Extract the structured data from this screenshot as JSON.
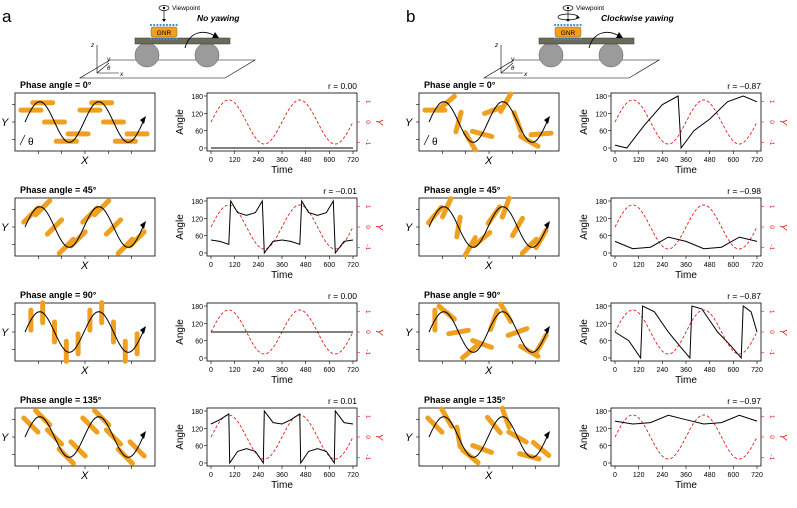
{
  "figure": {
    "panels": [
      {
        "letter": "a",
        "schematic": {
          "viewpoint": "Viewpoint",
          "gnr": "GNR",
          "mode": "No yawing",
          "axis_labels": [
            "z",
            "y",
            "θ",
            "x"
          ]
        },
        "rows": [
          {
            "phase": "Phase angle = 0°",
            "r": "r = 0.00",
            "rod_angles": [
              0,
              0,
              0,
              0,
              0,
              0,
              0,
              0,
              0,
              0
            ]
          },
          {
            "phase": "Phase angle = 45°",
            "r": "r = –0.01",
            "rod_angles": [
              45,
              45,
              45,
              45,
              45,
              45,
              45,
              45,
              45,
              45
            ]
          },
          {
            "phase": "Phase angle = 90°",
            "r": "r = 0.00",
            "rod_angles": [
              90,
              90,
              90,
              90,
              90,
              90,
              90,
              90,
              90,
              90
            ]
          },
          {
            "phase": "Phase angle = 135°",
            "r": "r = 0.01",
            "rod_angles": [
              135,
              135,
              135,
              135,
              135,
              135,
              135,
              135,
              135,
              135
            ]
          }
        ]
      },
      {
        "letter": "b",
        "schematic": {
          "viewpoint": "Viewpoint",
          "gnr": "GNR",
          "mode": "Clockwise yawing",
          "axis_labels": [
            "z",
            "y",
            "θ",
            "x"
          ]
        },
        "rows": [
          {
            "phase": "Phase angle = 0°",
            "r": "r = –0.87",
            "rod_angles": [
              0,
              40,
              75,
              120,
              165,
              20,
              60,
              110,
              150,
              5
            ]
          },
          {
            "phase": "Phase angle = 45°",
            "r": "r = –0.98",
            "rod_angles": [
              50,
              65,
              80,
              60,
              40,
              55,
              70,
              60,
              45,
              60
            ]
          },
          {
            "phase": "Phase angle = 90°",
            "r": "r = –0.87",
            "rod_angles": [
              90,
              140,
              10,
              40,
              160,
              70,
              120,
              20,
              150,
              60
            ]
          },
          {
            "phase": "Phase angle = 135°",
            "r": "r = –0.97",
            "rod_angles": [
              135,
              120,
              100,
              140,
              160,
              130,
              110,
              150,
              165,
              140
            ]
          }
        ]
      }
    ]
  },
  "axes": {
    "traj_x_label": "X",
    "traj_y_label": "Y",
    "theta_label": "θ",
    "angle_label": "Angle",
    "time_label": "Time",
    "right_label": "Y",
    "angle_ticks": [
      "0",
      "60",
      "120",
      "180"
    ],
    "time_ticks": [
      "0",
      "120",
      "240",
      "360",
      "480",
      "600",
      "720"
    ],
    "y_ticks": [
      "1",
      "0",
      "-1"
    ]
  },
  "chart_data": [
    {
      "type": "line",
      "panel": "a",
      "phase_angle": 0,
      "r": 0.0,
      "x_range": [
        0,
        720
      ],
      "y_range": [
        0,
        180
      ],
      "series": [
        {
          "style": "solid",
          "points": [
            [
              0,
              0
            ],
            [
              720,
              0
            ]
          ]
        },
        {
          "style": "dashed",
          "color": "#e0201b",
          "axis": "right",
          "function": "sin(2*pi*t/360)",
          "range": [
            -1,
            1
          ]
        }
      ]
    },
    {
      "type": "line",
      "panel": "a",
      "phase_angle": 45,
      "r": -0.01,
      "x_range": [
        0,
        720
      ],
      "y_range": [
        0,
        180
      ],
      "series": [
        {
          "style": "solid",
          "points": [
            [
              0,
              45
            ],
            [
              45,
              40
            ],
            [
              90,
              30
            ],
            [
              100,
              180
            ],
            [
              135,
              140
            ],
            [
              180,
              130
            ],
            [
              225,
              140
            ],
            [
              260,
              180
            ],
            [
              270,
              0
            ],
            [
              315,
              40
            ],
            [
              360,
              45
            ],
            [
              405,
              40
            ],
            [
              450,
              30
            ],
            [
              460,
              180
            ],
            [
              495,
              140
            ],
            [
              540,
              130
            ],
            [
              585,
              140
            ],
            [
              620,
              180
            ],
            [
              630,
              0
            ],
            [
              675,
              40
            ],
            [
              720,
              45
            ]
          ]
        },
        {
          "style": "dashed",
          "color": "#e0201b",
          "axis": "right",
          "range": [
            -1,
            1
          ]
        }
      ]
    },
    {
      "type": "line",
      "panel": "a",
      "phase_angle": 90,
      "r": 0.0,
      "x_range": [
        0,
        720
      ],
      "y_range": [
        0,
        180
      ],
      "series": [
        {
          "style": "solid",
          "points": [
            [
              0,
              90
            ],
            [
              720,
              90
            ]
          ]
        },
        {
          "style": "dashed",
          "color": "#e0201b",
          "axis": "right",
          "range": [
            -1,
            1
          ]
        }
      ]
    },
    {
      "type": "line",
      "panel": "a",
      "phase_angle": 135,
      "r": 0.01,
      "x_range": [
        0,
        720
      ],
      "y_range": [
        0,
        180
      ],
      "series": [
        {
          "style": "solid",
          "points": [
            [
              0,
              135
            ],
            [
              45,
              150
            ],
            [
              90,
              170
            ],
            [
              95,
              0
            ],
            [
              135,
              40
            ],
            [
              180,
              50
            ],
            [
              225,
              40
            ],
            [
              265,
              0
            ],
            [
              270,
              180
            ],
            [
              315,
              140
            ],
            [
              360,
              135
            ],
            [
              405,
              150
            ],
            [
              450,
              170
            ],
            [
              455,
              0
            ],
            [
              495,
              40
            ],
            [
              540,
              50
            ],
            [
              585,
              40
            ],
            [
              625,
              0
            ],
            [
              630,
              180
            ],
            [
              675,
              140
            ],
            [
              720,
              135
            ]
          ]
        },
        {
          "style": "dashed",
          "color": "#e0201b",
          "axis": "right",
          "range": [
            -1,
            1
          ]
        }
      ]
    },
    {
      "type": "line",
      "panel": "b",
      "phase_angle": 0,
      "r": -0.87,
      "x_range": [
        0,
        720
      ],
      "y_range": [
        0,
        180
      ],
      "series": [
        {
          "style": "solid",
          "points": [
            [
              0,
              10
            ],
            [
              60,
              0
            ],
            [
              150,
              80
            ],
            [
              240,
              150
            ],
            [
              320,
              180
            ],
            [
              335,
              0
            ],
            [
              400,
              60
            ],
            [
              480,
              100
            ],
            [
              570,
              160
            ],
            [
              650,
              180
            ],
            [
              720,
              160
            ]
          ]
        },
        {
          "style": "dashed",
          "color": "#e0201b",
          "axis": "right",
          "range": [
            -1,
            1
          ]
        }
      ]
    },
    {
      "type": "line",
      "panel": "b",
      "phase_angle": 45,
      "r": -0.98,
      "x_range": [
        0,
        720
      ],
      "y_range": [
        0,
        180
      ],
      "series": [
        {
          "style": "solid",
          "points": [
            [
              0,
              40
            ],
            [
              90,
              15
            ],
            [
              180,
              20
            ],
            [
              270,
              55
            ],
            [
              360,
              40
            ],
            [
              450,
              15
            ],
            [
              540,
              20
            ],
            [
              630,
              55
            ],
            [
              720,
              40
            ]
          ]
        },
        {
          "style": "dashed",
          "color": "#e0201b",
          "axis": "right",
          "range": [
            -1,
            1
          ]
        }
      ]
    },
    {
      "type": "line",
      "panel": "b",
      "phase_angle": 90,
      "r": -0.87,
      "x_range": [
        0,
        720
      ],
      "y_range": [
        0,
        180
      ],
      "series": [
        {
          "style": "solid",
          "points": [
            [
              0,
              90
            ],
            [
              70,
              60
            ],
            [
              130,
              0
            ],
            [
              140,
              180
            ],
            [
              200,
              160
            ],
            [
              270,
              90
            ],
            [
              330,
              40
            ],
            [
              380,
              0
            ],
            [
              390,
              180
            ],
            [
              440,
              170
            ],
            [
              520,
              90
            ],
            [
              590,
              40
            ],
            [
              640,
              0
            ],
            [
              650,
              180
            ],
            [
              690,
              160
            ],
            [
              720,
              90
            ]
          ]
        },
        {
          "style": "dashed",
          "color": "#e0201b",
          "axis": "right",
          "range": [
            -1,
            1
          ]
        }
      ]
    },
    {
      "type": "line",
      "panel": "b",
      "phase_angle": 135,
      "r": -0.97,
      "x_range": [
        0,
        720
      ],
      "y_range": [
        0,
        180
      ],
      "series": [
        {
          "style": "solid",
          "points": [
            [
              0,
              145
            ],
            [
              90,
              135
            ],
            [
              180,
              140
            ],
            [
              270,
              165
            ],
            [
              360,
              150
            ],
            [
              450,
              135
            ],
            [
              540,
              140
            ],
            [
              630,
              165
            ],
            [
              720,
              145
            ]
          ]
        },
        {
          "style": "dashed",
          "color": "#e0201b",
          "axis": "right",
          "range": [
            -1,
            1
          ]
        }
      ]
    }
  ]
}
